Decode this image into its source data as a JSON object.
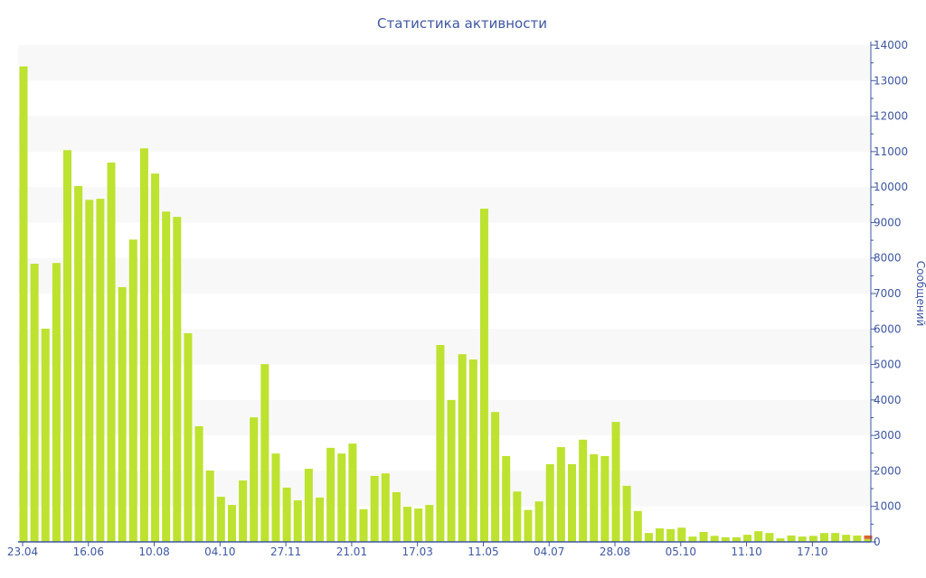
{
  "chart_data": {
    "type": "bar",
    "stacked": true,
    "title": "Статистика активности",
    "ylabel": "Сообщений",
    "xlabel": "",
    "ylim": [
      0,
      14000
    ],
    "yticks": [
      0,
      1000,
      2000,
      3000,
      4000,
      5000,
      6000,
      7000,
      8000,
      9000,
      10000,
      11000,
      12000,
      13000,
      14000
    ],
    "y_axis_side": "right",
    "grid": "alternating horizontal bands",
    "xtick_labels": [
      "23.04",
      "16.06",
      "10.08",
      "04.10",
      "27.11",
      "21.01",
      "17.03",
      "11.05",
      "04.07",
      "28.08",
      "05.10",
      "11.10",
      "17.10"
    ],
    "xtick_every": 6,
    "colors": {
      "primary": "#bde22f",
      "secondary": "#e0622c",
      "axis": "#3e57a0",
      "band": "#f8f8f8"
    },
    "series": [
      {
        "values": [
          13400,
          7840,
          6010,
          7860,
          11040,
          10030,
          9640,
          9670,
          10690,
          7180,
          8520,
          11090,
          10380,
          9310,
          9160,
          5880,
          3260,
          2010,
          1270,
          1040,
          1730,
          3510,
          5010,
          2490,
          1530,
          1170,
          2060,
          1250,
          2650,
          2490,
          2770,
          920,
          1860,
          1930,
          1400,
          990,
          940,
          1040,
          5550,
          4000,
          5290,
          5140,
          9390,
          3660,
          2420,
          1420,
          900,
          1140,
          2190,
          2670,
          2190,
          2880,
          2470,
          2420,
          3380,
          1580,
          870,
          250,
          380,
          360,
          400,
          150,
          280,
          170,
          130,
          130,
          200,
          300,
          250,
          100,
          180,
          150,
          170,
          250,
          250,
          200,
          180,
          80
        ]
      },
      {
        "values": [
          0,
          0,
          0,
          0,
          0,
          0,
          0,
          0,
          0,
          0,
          0,
          0,
          0,
          0,
          0,
          0,
          0,
          0,
          0,
          0,
          0,
          0,
          0,
          0,
          0,
          0,
          0,
          0,
          0,
          0,
          0,
          0,
          0,
          0,
          0,
          0,
          0,
          0,
          0,
          0,
          0,
          0,
          0,
          0,
          0,
          0,
          0,
          0,
          0,
          0,
          0,
          0,
          0,
          0,
          0,
          0,
          0,
          0,
          0,
          0,
          0,
          0,
          0,
          0,
          0,
          0,
          0,
          0,
          0,
          0,
          0,
          0,
          0,
          0,
          0,
          0,
          0,
          100
        ]
      }
    ]
  }
}
